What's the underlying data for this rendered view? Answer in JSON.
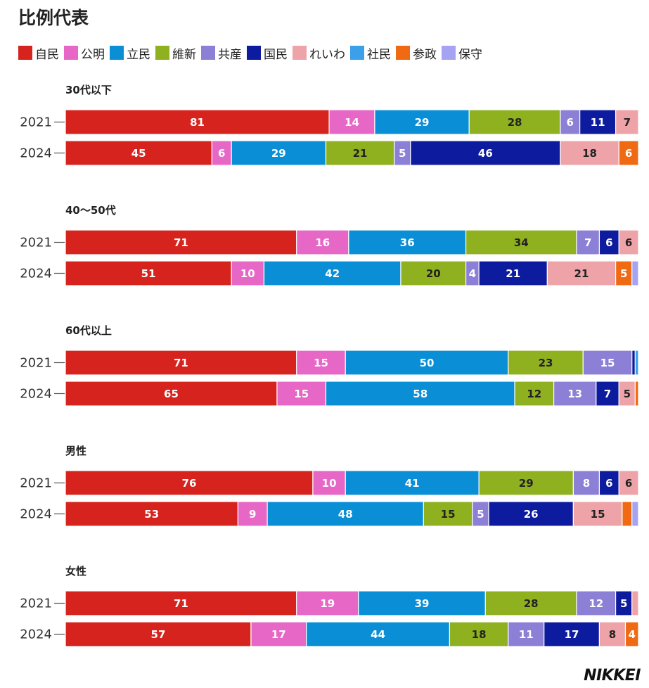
{
  "title": "比例代表",
  "legend": [
    {
      "name": "自民",
      "color": "#d6231e"
    },
    {
      "name": "公明",
      "color": "#e667c6"
    },
    {
      "name": "立民",
      "color": "#0a8fd6"
    },
    {
      "name": "維新",
      "color": "#8fb01f"
    },
    {
      "name": "共産",
      "color": "#8c7fd6"
    },
    {
      "name": "国民",
      "color": "#0d1b9e"
    },
    {
      "name": "れいわ",
      "color": "#eda3a8"
    },
    {
      "name": "社民",
      "color": "#3ba0ea"
    },
    {
      "name": "参政",
      "color": "#ef6a12"
    },
    {
      "name": "保守",
      "color": "#a6a3f2"
    }
  ],
  "label_colors": {
    "light": "#ffffff",
    "dark": "#222222"
  },
  "chart_data": {
    "type": "bar",
    "stacked": true,
    "orientation": "horizontal",
    "parties": [
      "自民",
      "公明",
      "立民",
      "維新",
      "共産",
      "国民",
      "れいわ",
      "社民",
      "参政",
      "保守"
    ],
    "groups": [
      {
        "name": "30代以下",
        "rows": [
          {
            "year": "2021",
            "values": [
              81,
              14,
              29,
              28,
              6,
              11,
              7,
              0,
              0,
              0
            ]
          },
          {
            "year": "2024",
            "values": [
              45,
              6,
              29,
              21,
              5,
              46,
              18,
              0,
              6,
              0
            ]
          }
        ]
      },
      {
        "name": "40～50代",
        "rows": [
          {
            "year": "2021",
            "values": [
              71,
              16,
              36,
              34,
              7,
              6,
              6,
              0,
              0,
              0
            ]
          },
          {
            "year": "2024",
            "values": [
              51,
              10,
              42,
              20,
              4,
              21,
              21,
              0,
              5,
              2
            ]
          }
        ]
      },
      {
        "name": "60代以上",
        "rows": [
          {
            "year": "2021",
            "values": [
              71,
              15,
              50,
              23,
              15,
              1,
              0,
              1,
              0,
              0
            ]
          },
          {
            "year": "2024",
            "values": [
              65,
              15,
              58,
              12,
              13,
              7,
              5,
              0,
              1,
              0
            ]
          }
        ]
      },
      {
        "name": "男性",
        "rows": [
          {
            "year": "2021",
            "values": [
              76,
              10,
              41,
              29,
              8,
              6,
              6,
              0,
              0,
              0
            ]
          },
          {
            "year": "2024",
            "values": [
              53,
              9,
              48,
              15,
              5,
              26,
              15,
              0,
              3,
              2
            ]
          }
        ]
      },
      {
        "name": "女性",
        "rows": [
          {
            "year": "2021",
            "values": [
              71,
              19,
              39,
              28,
              12,
              5,
              2,
              0,
              0,
              0
            ]
          },
          {
            "year": "2024",
            "values": [
              57,
              17,
              44,
              18,
              11,
              17,
              8,
              0,
              4,
              0
            ]
          }
        ]
      }
    ],
    "min_label_value": 4
  },
  "credit": "NIKKEI"
}
